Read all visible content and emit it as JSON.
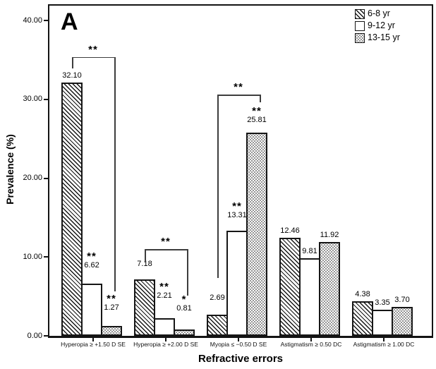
{
  "panel_label": "A",
  "chart_data": {
    "type": "bar",
    "title": "",
    "xlabel": "Refractive errors",
    "ylabel": "Prevalence (%)",
    "ylim": [
      0,
      41.9
    ],
    "grid": false,
    "legend_position": "top-right-inside",
    "yticks": [
      {
        "value": 0,
        "label": "0.00"
      },
      {
        "value": 10,
        "label": "10.00"
      },
      {
        "value": 20,
        "label": "20.00"
      },
      {
        "value": 30,
        "label": "30.00"
      },
      {
        "value": 40,
        "label": "40.00"
      }
    ],
    "categories": [
      "Hyperopia ≥ +1.50 D SE",
      "Hyperopia ≥ +2.00 D SE",
      "Myopia ≤ −0.50 D SE",
      "Astigmatism ≥ 0.50 DC",
      "Astigmatism ≥ 1.00 DC"
    ],
    "series": [
      {
        "name": "6-8 yr",
        "pattern": "diagonal-hatch",
        "values": [
          32.1,
          7.18,
          2.69,
          12.46,
          4.38
        ],
        "sig": [
          "",
          "",
          "",
          "",
          ""
        ]
      },
      {
        "name": "9-12 yr",
        "pattern": "plain-white",
        "values": [
          6.62,
          2.21,
          13.31,
          9.81,
          3.35
        ],
        "sig": [
          "**",
          "**",
          "**",
          "",
          ""
        ]
      },
      {
        "name": "13-15 yr",
        "pattern": "dot-grid",
        "values": [
          1.27,
          0.81,
          25.81,
          11.92,
          3.7
        ],
        "sig": [
          "**",
          "*",
          "**",
          "",
          ""
        ]
      }
    ],
    "brackets": [
      {
        "category": 0,
        "from_series": 0,
        "to_series": 2,
        "stars": "**",
        "top_value": 35.4,
        "from_drop_value": 33.9,
        "to_drop_value": 5.6
      },
      {
        "category": 1,
        "from_series": 0,
        "to_series": 2,
        "stars": "**",
        "top_value": 11.0,
        "from_drop_value": 9.3,
        "to_drop_value": 5.1
      },
      {
        "category": 2,
        "from_series": 0,
        "to_series": 2,
        "stars": "**",
        "top_value": 30.6,
        "from_drop_value": 7.3,
        "to_drop_value": 29.6
      }
    ],
    "colors": {
      "foreground": "#000000",
      "background": "#ffffff",
      "dot_fill": "#8a8a8a"
    }
  }
}
